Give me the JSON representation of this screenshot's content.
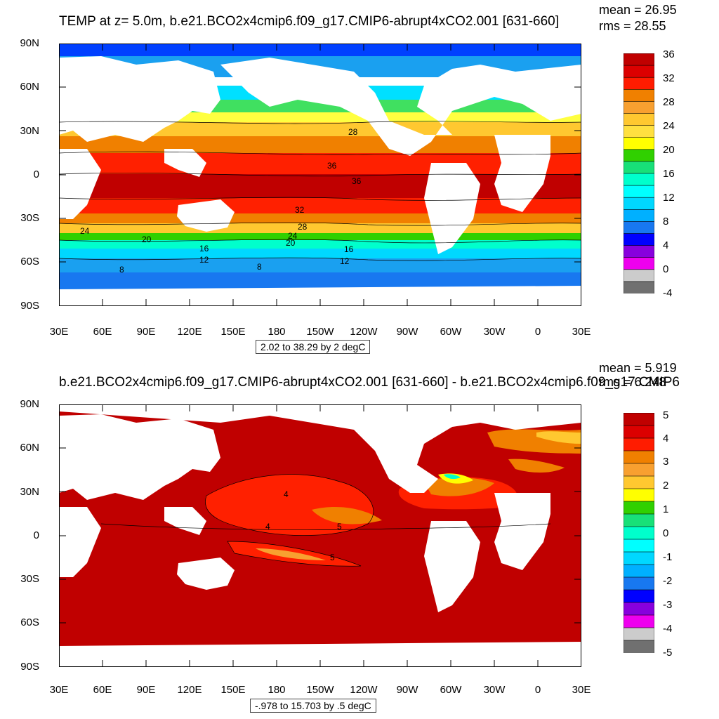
{
  "top": {
    "title": "TEMP at z=   5.0m, b.e21.BCO2x4cmip6.f09_g17.CMIP6-abrupt4xCO2.001 [631-660]",
    "mean": "mean = 26.95",
    "rms": "rms = 28.55",
    "range": "2.02 to 38.29 by 2 degC",
    "colorbar_labels": [
      "36",
      "32",
      "28",
      "24",
      "20",
      "16",
      "12",
      "8",
      "4",
      "0",
      "-4"
    ],
    "colorbar_colors": [
      "#c00000",
      "#dc0000",
      "#ff1c00",
      "#f08000",
      "#f8a030",
      "#ffc830",
      "#ffe040",
      "#ffff00",
      "#30d000",
      "#18e078",
      "#00ffcc",
      "#00ffff",
      "#00d8ff",
      "#00b0ff",
      "#1878f0",
      "#0000ff",
      "#8800dd",
      "#ee00ee",
      "#cccccc",
      "#707070"
    ],
    "contour_labels": [
      "28",
      "36",
      "36",
      "32",
      "28",
      "24",
      "20",
      "24",
      "20",
      "16",
      "16",
      "12",
      "12",
      "8",
      "8"
    ]
  },
  "bottom": {
    "title": "b.e21.BCO2x4cmip6.f09_g17.CMIP6-abrupt4xCO2.001 [631-660] - b.e21.BCO2x4cmip6.f09_g17.CMIP6",
    "mean": "mean = 5.919",
    "rms": "rms = 6.248",
    "range": "-.978 to 15.703 by .5 degC",
    "colorbar_labels": [
      "5",
      "4",
      "3",
      "2",
      "1",
      "0",
      "-1",
      "-2",
      "-3",
      "-4",
      "-5"
    ],
    "colorbar_colors": [
      "#c00000",
      "#dc0000",
      "#ff1c00",
      "#f08000",
      "#f8a030",
      "#ffc830",
      "#ffff00",
      "#30d000",
      "#18e078",
      "#00ffcc",
      "#00ffff",
      "#00d8ff",
      "#00b0ff",
      "#1878f0",
      "#0000ff",
      "#8800dd",
      "#ee00ee",
      "#cccccc",
      "#707070"
    ],
    "contour_labels": [
      "4",
      "4",
      "5",
      "5"
    ]
  },
  "lat_ticks": [
    "90N",
    "60N",
    "30N",
    "0",
    "30S",
    "60S",
    "90S"
  ],
  "lon_ticks": [
    "30E",
    "60E",
    "90E",
    "120E",
    "150E",
    "180",
    "150W",
    "120W",
    "90W",
    "60W",
    "30W",
    "0",
    "30E"
  ]
}
